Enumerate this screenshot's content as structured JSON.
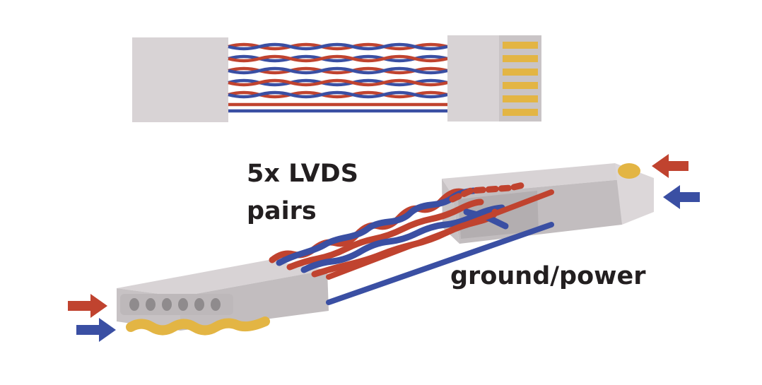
{
  "diagram": {
    "labels": {
      "lvds_line1": "5x LVDS",
      "lvds_line2": "pairs",
      "ground_power": "ground/power"
    },
    "colors": {
      "red_wire": "#c0432f",
      "blue_wire": "#3a4fa3",
      "gold_contact": "#e3b544",
      "connector_light": "#d8d3d5",
      "connector_mid": "#c7c2c4",
      "connector_dark": "#b3aeb0",
      "hole": "#8f8b8d",
      "text": "#231f20"
    },
    "icons": [
      "red-arrow-icon",
      "blue-arrow-icon"
    ]
  }
}
